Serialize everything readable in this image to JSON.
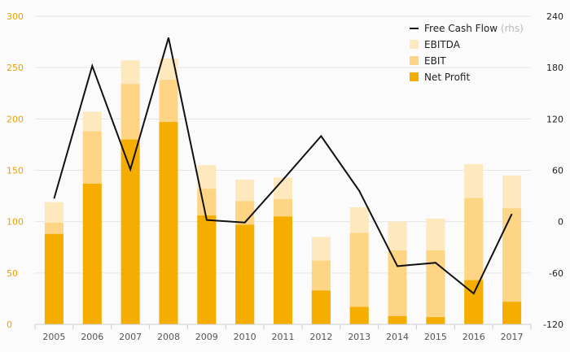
{
  "chart_data": {
    "type": "bar",
    "categories": [
      "2005",
      "2006",
      "2007",
      "2008",
      "2009",
      "2010",
      "2011",
      "2012",
      "2013",
      "2014",
      "2015",
      "2016",
      "2017"
    ],
    "series": [
      {
        "name": "EBITDA",
        "kind": "bar",
        "axis": "left",
        "color": "#fde9bd",
        "values": [
          119,
          207,
          257,
          259,
          155,
          141,
          143,
          85,
          114,
          100,
          103,
          156,
          145
        ]
      },
      {
        "name": "EBIT",
        "kind": "bar",
        "axis": "left",
        "color": "#fdd584",
        "values": [
          99,
          188,
          234,
          238,
          132,
          120,
          122,
          62,
          89,
          72,
          72,
          123,
          113
        ]
      },
      {
        "name": "Net Profit",
        "kind": "bar",
        "axis": "left",
        "color": "#f5ad00",
        "values": [
          88,
          137,
          180,
          197,
          106,
          97,
          105,
          33,
          17,
          8,
          7,
          43,
          22
        ]
      },
      {
        "name": "Free Cash Flow",
        "kind": "line",
        "axis": "right",
        "color": "#111111",
        "values": [
          27,
          182,
          61,
          215,
          2,
          -1,
          49,
          100,
          36,
          -52,
          -48,
          -84,
          9
        ]
      }
    ],
    "left_axis": {
      "ylim": [
        0,
        300
      ],
      "ticks": [
        "0",
        "50",
        "100",
        "150",
        "200",
        "250",
        "300"
      ],
      "color": "#e8a300"
    },
    "right_axis": {
      "ylim": [
        -120,
        240
      ],
      "ticks": [
        "-120",
        "-60",
        "0",
        "60",
        "120",
        "180",
        "240"
      ],
      "color": "#222222"
    },
    "legend": {
      "placement": "top-right",
      "entries": [
        {
          "label": "Free Cash Flow",
          "suffix": "(rhs)",
          "marker": "line",
          "color": "#111111"
        },
        {
          "label": "EBITDA",
          "suffix": "",
          "marker": "box",
          "color": "#fde9bd"
        },
        {
          "label": "EBIT",
          "suffix": "",
          "marker": "box",
          "color": "#fdd584"
        },
        {
          "label": "Net Profit",
          "suffix": "",
          "marker": "box",
          "color": "#f5ad00"
        }
      ]
    },
    "gridlines": true,
    "title": "",
    "xlabel": "",
    "ylabel": ""
  }
}
